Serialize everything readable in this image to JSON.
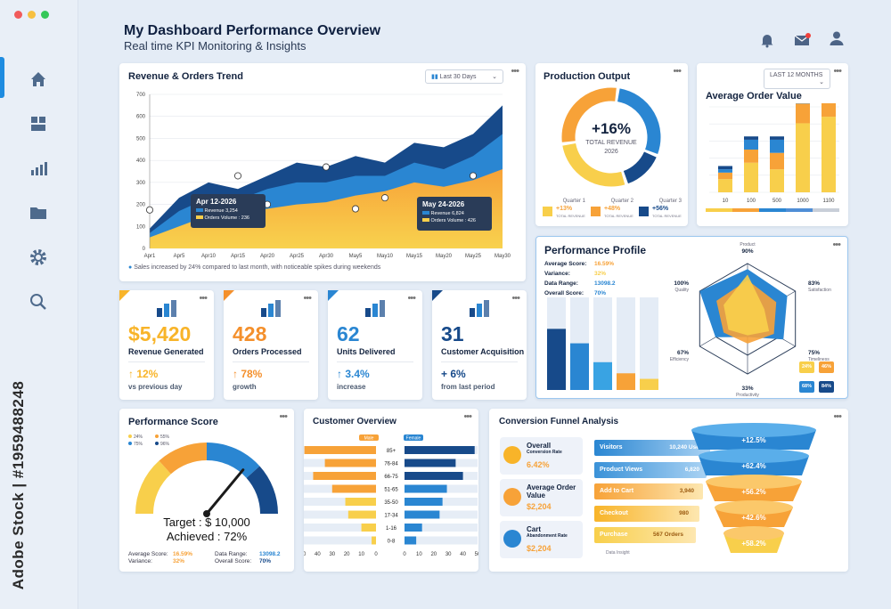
{
  "watermark": "Adobe Stock | #1959488248",
  "header": {
    "title": "My Dashboard Performance Overview",
    "subtitle": "Real time KPI Monitoring & Insights"
  },
  "colors": {
    "accent": "#1f8ce0",
    "navy": "#174a8a",
    "blue": "#2a86d2",
    "orange": "#f7a238",
    "yellow": "#f8cf4b",
    "green": "#3bb273"
  },
  "icons": {
    "sidebar": [
      "home-icon",
      "grid-icon",
      "bar-chart-icon",
      "folder-icon",
      "settings-icon",
      "search-icon"
    ],
    "top": [
      "bell-icon",
      "mail-icon",
      "user-icon"
    ]
  },
  "revenue": {
    "title": "Revenue & Orders Trend",
    "range": "Last 30 Days",
    "footnote": "Sales increased by 24% compared to last month, with noticeable spikes during weekends",
    "tip1": {
      "date": "Apr 12-2026",
      "l1": "Revenue 3,254",
      "l2": "Orders Volume : 236"
    },
    "tip2": {
      "date": "May 24-2026",
      "l1": "Revenue 6,824",
      "l2": "Orders Volume : 426"
    }
  },
  "chart_data": [
    {
      "type": "area",
      "title": "Revenue & Orders Trend",
      "x": [
        "Apr1",
        "Apr5",
        "Apr10",
        "Apr15",
        "Apr20",
        "Apr25",
        "Apr30",
        "May5",
        "May10",
        "May15",
        "May20",
        "May25",
        "May30"
      ],
      "ylim": [
        0,
        700
      ],
      "yticks": [
        0,
        100,
        200,
        300,
        400,
        500,
        600,
        700
      ],
      "series": [
        {
          "name": "Revenue",
          "values": [
            90,
            230,
            300,
            270,
            330,
            390,
            370,
            420,
            390,
            480,
            460,
            520,
            650
          ]
        },
        {
          "name": "",
          "values": [
            70,
            170,
            230,
            220,
            270,
            300,
            300,
            330,
            330,
            390,
            360,
            420,
            520
          ]
        },
        {
          "name": "Orders Volume",
          "values": [
            50,
            100,
            150,
            160,
            180,
            200,
            210,
            240,
            260,
            300,
            280,
            310,
            360
          ]
        }
      ],
      "markers": [
        {
          "x": "Apr1",
          "y": 175
        },
        {
          "x": "Apr15",
          "y": 330
        },
        {
          "x": "Apr20",
          "y": 200
        },
        {
          "x": "Apr30",
          "y": 370
        },
        {
          "x": "May5",
          "y": 180
        },
        {
          "x": "May10",
          "y": 230
        },
        {
          "x": "May25",
          "y": 330
        }
      ]
    },
    {
      "type": "pie",
      "title": "Production Output",
      "center": "+16%",
      "center_sub": "TOTAL REVENUE",
      "center_year": "2026",
      "labels": [
        "Quarter 1",
        "Quarter 2",
        "Quarter 3"
      ],
      "values": [
        35,
        30,
        35
      ],
      "changes": [
        "+13%",
        "+48%",
        "+56%"
      ],
      "legend_sub": "TOTAL REVENUE"
    },
    {
      "type": "bar",
      "title": "Average Order Value",
      "range": "LAST 12 MONTHS",
      "categories": [
        "10",
        "100",
        "500",
        "1000",
        "1100"
      ],
      "series": [
        {
          "name": "",
          "values": [
            40,
            90,
            70,
            210,
            230
          ]
        },
        {
          "name": "",
          "values": [
            20,
            40,
            50,
            60,
            60
          ]
        },
        {
          "name": "",
          "values": [
            10,
            30,
            40,
            40,
            40
          ]
        },
        {
          "name": "",
          "values": [
            10,
            10,
            10,
            20,
            20
          ]
        }
      ],
      "ylim": [
        0,
        260
      ]
    },
    {
      "type": "radar",
      "title": "Performance Profile",
      "axes": [
        {
          "label": "Product",
          "value": "90%"
        },
        {
          "label": "Satisfaction",
          "value": "83%"
        },
        {
          "label": "Timeliness",
          "value": "75%"
        },
        {
          "label": "Productivity",
          "value": "33%"
        },
        {
          "label": "Efficiency",
          "value": "67%"
        },
        {
          "label": "Quality",
          "value": "100%"
        }
      ],
      "series": [
        {
          "name": "",
          "values": [
            0.9,
            0.83,
            0.75,
            0.33,
            0.67,
            1
          ]
        },
        {
          "name": "",
          "values": [
            0.7,
            0.6,
            0.55,
            0.45,
            0.5,
            0.65
          ]
        },
        {
          "name": "",
          "values": [
            0.8,
            0.35,
            0.45,
            0.3,
            0.4,
            0.5
          ]
        }
      ],
      "bars": [
        {
          "fill": 0.55,
          "color": "#174a8a"
        },
        {
          "fill": 0.42,
          "color": "#2a86d2"
        },
        {
          "fill": 0.25,
          "color": "#39a3e3"
        },
        {
          "fill": 0.15,
          "color": "#f7a238"
        },
        {
          "fill": 0.1,
          "color": "#f8cf4b"
        }
      ]
    },
    {
      "type": "bar",
      "title": "Customer Overview",
      "orientation": "horizontal",
      "categories": [
        "85+",
        "76-84",
        "66-75",
        "51-65",
        "35-50",
        "17-34",
        "1-16",
        "0-8"
      ],
      "series": [
        {
          "name": "Male",
          "values": [
            -49,
            -35,
            -43,
            -30,
            -21,
            -19,
            -10,
            -3
          ]
        },
        {
          "name": "Female",
          "values": [
            48,
            35,
            40,
            29,
            26,
            24,
            12,
            8
          ]
        }
      ],
      "xticks": [
        "50",
        "40",
        "30",
        "20",
        "10",
        "0",
        "0",
        "10",
        "20",
        "30",
        "40",
        "50"
      ]
    },
    {
      "type": "bar",
      "title": "Conversion Funnel Analysis",
      "orientation": "horizontal",
      "categories": [
        "Visitors",
        "Product Views",
        "Add to Cart",
        "Checkout",
        "Purchase"
      ],
      "values": [
        10240,
        6820,
        3940,
        980,
        567
      ],
      "value_labels": [
        "10,240 Users",
        "6,820",
        "3,940",
        "980",
        "567 Orders"
      ],
      "rates": [
        "+12.5%",
        "+62.4%",
        "+56.2%",
        "+42.6%",
        "+58.2%"
      ]
    }
  ],
  "production": {
    "title": "Production Output"
  },
  "aov": {
    "title": "Average Order Value"
  },
  "kpis": [
    {
      "value": "$5,420",
      "label": "Revenue Generated",
      "change": "↑ 12%",
      "sub": "vs previous day",
      "color": "#f8b429",
      "corner": "#f8b429",
      "icon": "money-growth-icon"
    },
    {
      "value": "428",
      "label": "Orders Processed",
      "change": "↑ 78%",
      "sub": "growth",
      "color": "#f4902c",
      "corner": "#f4902c",
      "icon": "checklist-icon"
    },
    {
      "value": "62",
      "label": "Units Delivered",
      "change": "↑ 3.4%",
      "sub": "increase",
      "color": "#2a86d2",
      "corner": "#2a86d2",
      "icon": "delivery-icon"
    },
    {
      "value": "31",
      "label": "Customer Acquisition",
      "change": "+ 6%",
      "sub": "from last period",
      "color": "#174a8a",
      "corner": "#174a8a",
      "icon": "magnet-icon"
    }
  ],
  "profile": {
    "title": "Performance Profile",
    "rows": [
      {
        "k": "Average Score:",
        "v": "16.59%"
      },
      {
        "k": "Variance:",
        "v": "32%"
      },
      {
        "k": "Data Range:",
        "v": "13098.2"
      },
      {
        "k": "Overall Score:",
        "v": "70%"
      }
    ],
    "chips": [
      "24%",
      "46%",
      "68%",
      "84%"
    ]
  },
  "score": {
    "title": "Performance Score",
    "legend": [
      "24%",
      "55%",
      "75%",
      "96%"
    ],
    "target": "Target : $ 10,000",
    "achieved": "Achieved : 72%",
    "gauge": 0.72,
    "stats": [
      {
        "k": "Average Score:",
        "v": "16.59%"
      },
      {
        "k": "Data Range:",
        "v": "13098.2"
      },
      {
        "k": "Variance:",
        "v": "32%"
      },
      {
        "k": "Overall Score:",
        "v": "70%"
      }
    ]
  },
  "customer": {
    "title": "Customer Overview"
  },
  "funnel": {
    "title": "Conversion Funnel Analysis",
    "note": "Data Insight",
    "metrics": [
      {
        "label": "Overall",
        "sub": "Conversion Rate",
        "value": "6.42%"
      },
      {
        "label": "Average Order Value",
        "sub": "",
        "value": "$2,204"
      },
      {
        "label": "Cart",
        "sub": "Abandonment Rate",
        "value": "$2,204"
      }
    ]
  }
}
